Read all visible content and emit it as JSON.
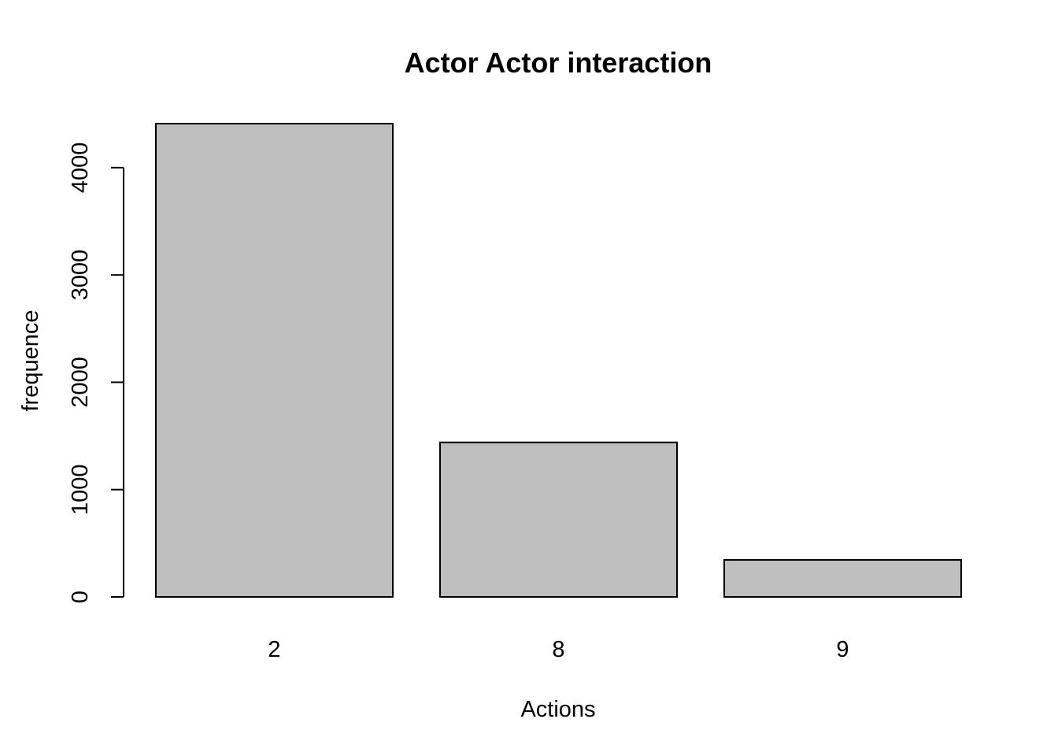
{
  "chart_data": {
    "type": "bar",
    "title": "Actor Actor interaction",
    "xlabel": "Actions",
    "ylabel": "frequence",
    "categories": [
      "2",
      "8",
      "9"
    ],
    "values": [
      4410,
      1440,
      345
    ],
    "ylim": [
      0,
      4410
    ],
    "yticks": [
      0,
      1000,
      2000,
      3000,
      4000
    ],
    "grid": false,
    "legend": "none",
    "colors": {
      "bar_fill": "#bebebe",
      "bar_stroke": "#000000",
      "axis": "#000000",
      "background": "#ffffff"
    }
  }
}
